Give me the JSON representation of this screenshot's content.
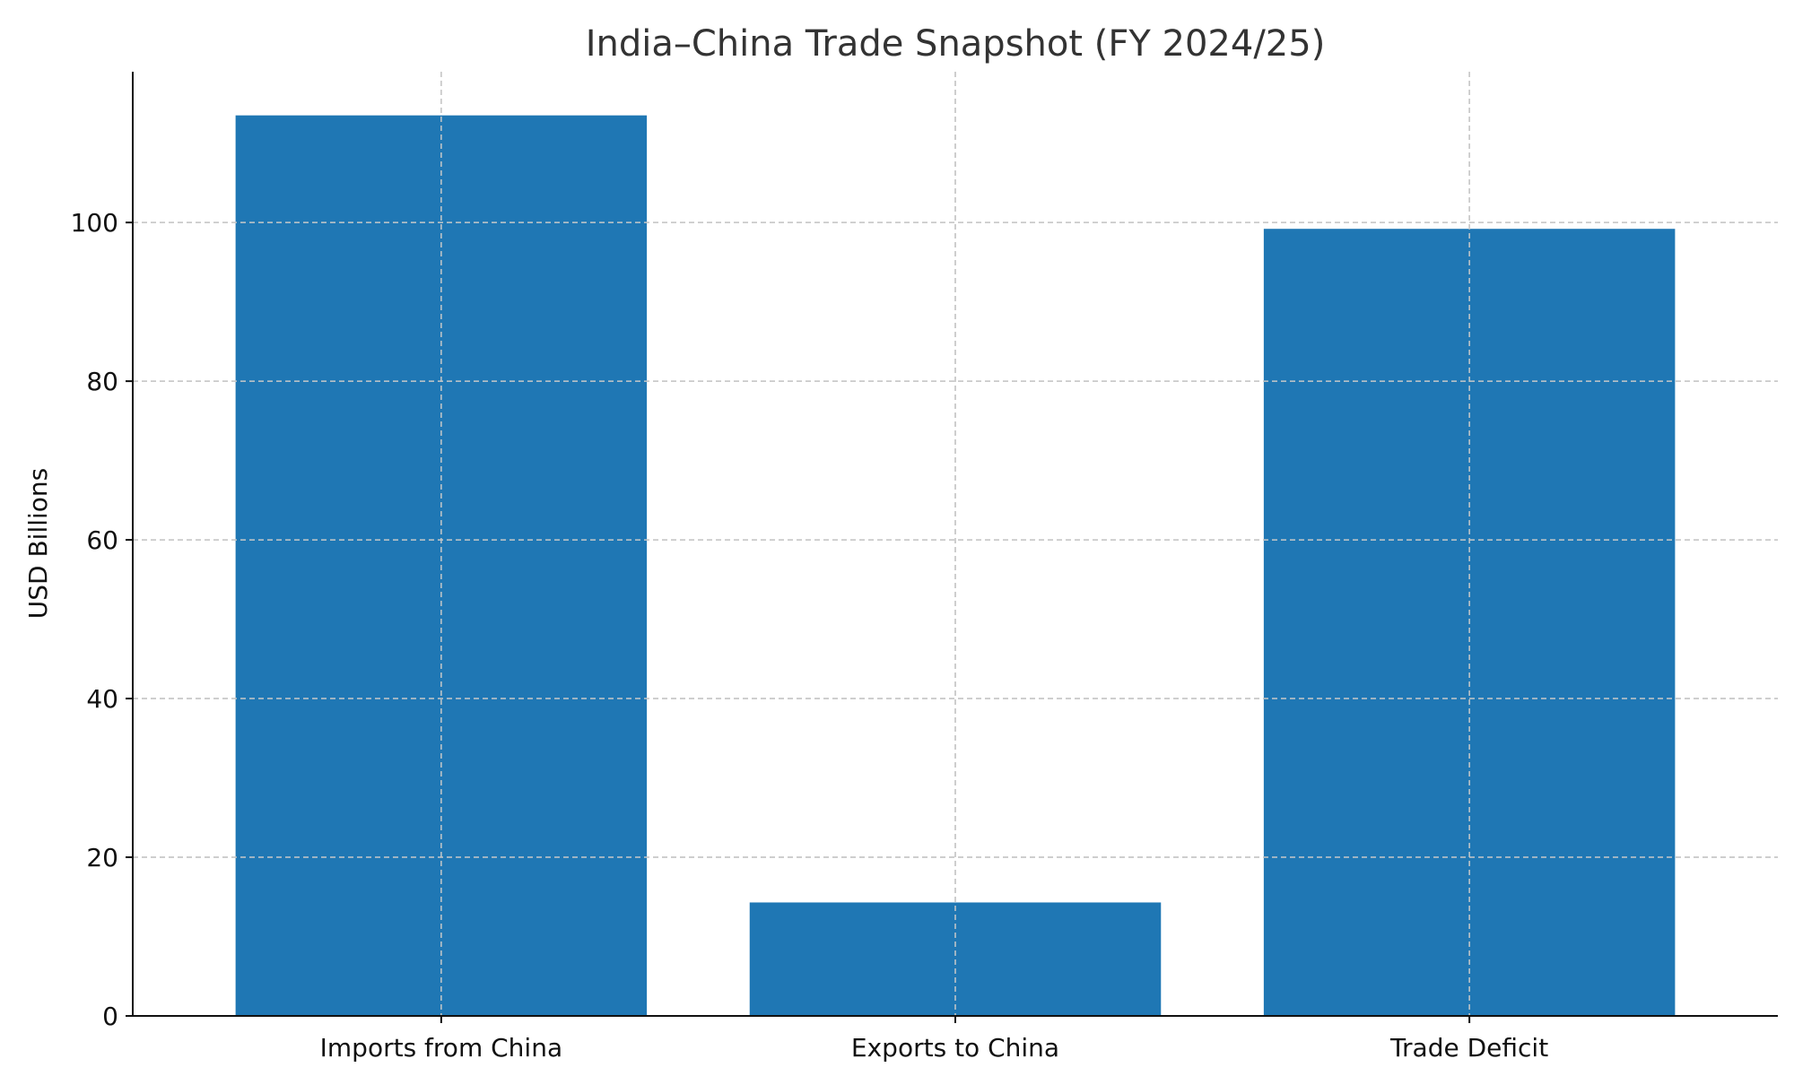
{
  "chart_data": {
    "type": "bar",
    "title": "India–China Trade Snapshot (FY 2024/25)",
    "xlabel": "",
    "ylabel": "USD Billions",
    "categories": [
      "Imports from China",
      "Exports to China",
      "Trade Deficit"
    ],
    "values": [
      113.5,
      14.3,
      99.2
    ],
    "ylim": [
      0,
      119
    ],
    "yticks": [
      0,
      20,
      40,
      60,
      80,
      100
    ],
    "grid": true,
    "bar_color": "#1f77b4"
  }
}
